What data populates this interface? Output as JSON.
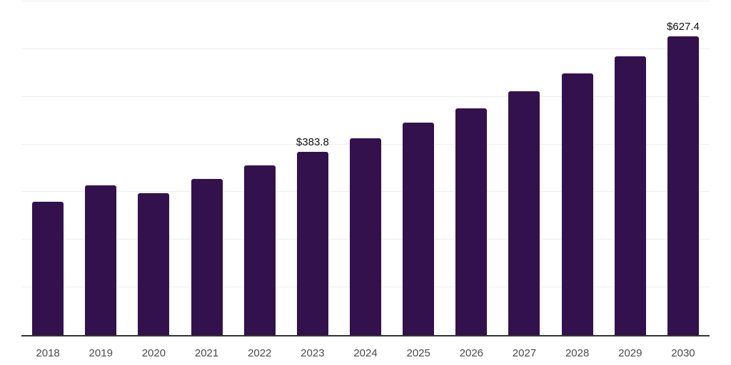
{
  "chart_data": {
    "type": "bar",
    "title": "",
    "xlabel": "",
    "ylabel": "",
    "ylim": [
      0,
      700
    ],
    "grid": true,
    "grid_step": 100,
    "legend": false,
    "y_axis_labels_visible": false,
    "categories": [
      "2018",
      "2019",
      "2020",
      "2021",
      "2022",
      "2023",
      "2024",
      "2025",
      "2026",
      "2027",
      "2028",
      "2029",
      "2030"
    ],
    "values": [
      279.9,
      314.1,
      297.8,
      327.6,
      355.9,
      383.8,
      412.4,
      445.2,
      476.4,
      512.2,
      549.4,
      585.1,
      627.4
    ],
    "data_labels": [
      "",
      "",
      "",
      "",
      "",
      "$383.8",
      "",
      "",
      "",
      "",
      "",
      "",
      "$627.4"
    ],
    "colors": {
      "bar": "#33114d",
      "axis_line": "#333333",
      "grid_line": "#ededed",
      "tick_label": "#4a4a4a",
      "data_label": "#111111",
      "background": "#ffffff"
    }
  }
}
